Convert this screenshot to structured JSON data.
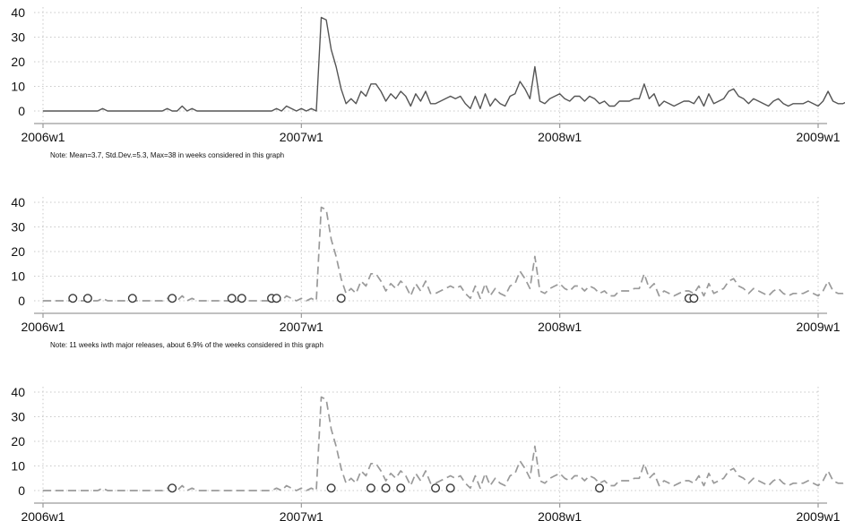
{
  "chart_data": [
    {
      "type": "line",
      "style": "solid",
      "ylim": [
        0,
        40
      ],
      "yticks": [
        "0",
        "10",
        "20",
        "30",
        "40"
      ],
      "xticks": [
        "2006w1",
        "2007w1",
        "2008w1",
        "2009w1"
      ],
      "x_range": [
        "2006w1",
        "2009w1"
      ],
      "grid": true,
      "note": "Note: Mean=3.7, Std.Dev.=5.3, Max=38 in weeks considered in this graph",
      "series": [
        {
          "values": [
            0,
            0,
            0,
            0,
            0,
            0,
            0,
            0,
            0,
            0,
            0,
            0,
            1,
            0,
            0,
            0,
            0,
            0,
            0,
            0,
            0,
            0,
            0,
            0,
            0,
            1,
            0,
            0,
            2,
            0,
            1,
            0,
            0,
            0,
            0,
            0,
            0,
            0,
            0,
            0,
            0,
            0,
            0,
            0,
            0,
            0,
            0,
            1,
            0,
            2,
            1,
            0,
            1,
            0,
            1,
            0,
            38,
            37,
            25,
            18,
            9,
            3,
            5,
            3,
            8,
            6,
            11,
            11,
            8,
            4,
            7,
            5,
            8,
            6,
            2,
            7,
            4,
            8,
            3,
            3,
            4,
            5,
            6,
            5,
            6,
            3,
            1,
            6,
            1,
            7,
            2,
            5,
            3,
            2,
            6,
            7,
            12,
            9,
            5,
            18,
            4,
            3,
            5,
            6,
            7,
            5,
            4,
            6,
            6,
            4,
            6,
            5,
            3,
            4,
            2,
            2,
            4,
            4,
            4,
            5,
            5,
            11,
            5,
            7,
            2,
            4,
            3,
            2,
            3,
            4,
            4,
            3,
            6,
            2,
            7,
            3,
            4,
            5,
            8,
            9,
            6,
            5,
            3,
            5,
            4,
            3,
            2,
            4,
            5,
            3,
            2,
            3,
            3,
            3,
            4,
            3,
            2,
            4,
            8,
            4,
            3,
            3,
            4,
            2,
            3,
            2,
            4
          ]
        }
      ]
    },
    {
      "type": "line",
      "style": "dashed",
      "ylim": [
        0,
        40
      ],
      "yticks": [
        "0",
        "10",
        "20",
        "30",
        "40"
      ],
      "xticks": [
        "2006w1",
        "2007w1",
        "2008w1",
        "2009w1"
      ],
      "x_range": [
        "2006w1",
        "2009w1"
      ],
      "grid": true,
      "note": "Note: 11 weeks iwth major releases, about 6.9% of the weeks considered in this graph",
      "markers": {
        "shape": "hollow-circle",
        "weeks": [
          "2006w7",
          "2006w10",
          "2006w19",
          "2006w27",
          "2006w39",
          "2006w41",
          "2006w47",
          "2006w48",
          "2007w9",
          "2008w27",
          "2008w28"
        ],
        "values": [
          1,
          1,
          1,
          1,
          1,
          1,
          1,
          1,
          1,
          1,
          1
        ]
      }
    },
    {
      "type": "line",
      "style": "dashed",
      "ylim": [
        0,
        40
      ],
      "yticks": [
        "0",
        "10",
        "20",
        "30",
        "40"
      ],
      "xticks": [
        "2006w1",
        "2007w1",
        "2008w1",
        "2009w1"
      ],
      "x_range": [
        "2006w1",
        "2009w1"
      ],
      "grid": true,
      "note": "",
      "markers": {
        "shape": "hollow-circle",
        "weeks": [
          "2006w27",
          "2007w7",
          "2007w15",
          "2007w18",
          "2007w21",
          "2007w28",
          "2007w31",
          "2008w9"
        ],
        "values": [
          1,
          1,
          1,
          1,
          1,
          1,
          1,
          1
        ]
      }
    }
  ]
}
